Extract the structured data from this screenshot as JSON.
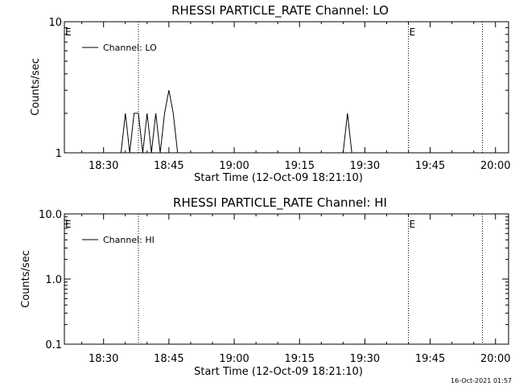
{
  "chart_data": [
    {
      "type": "line",
      "title": "RHESSI PARTICLE_RATE Channel: LO",
      "xlabel": "Start Time (12-Oct-09 18:21:10)",
      "ylabel": "Counts/sec",
      "y_scale": "log",
      "ylim": [
        1,
        10
      ],
      "y_ticks": [
        {
          "value": 1,
          "label": "1"
        },
        {
          "value": 10,
          "label": "10"
        }
      ],
      "xlim": [
        "18:21",
        "20:03"
      ],
      "x_ticks": [
        "18:30",
        "18:45",
        "19:00",
        "19:15",
        "19:30",
        "19:45",
        "20:00"
      ],
      "legend": {
        "position": "top-left",
        "entries": [
          "Channel: LO"
        ]
      },
      "markers": [
        {
          "x": "18:21",
          "label": "E",
          "line": false
        },
        {
          "x": "18:38",
          "label": "",
          "line": true
        },
        {
          "x": "19:40",
          "label": "E",
          "line": true
        },
        {
          "x": "19:57",
          "label": "",
          "line": true
        }
      ],
      "series": [
        {
          "name": "Channel: LO",
          "points": [
            [
              "18:34",
              1
            ],
            [
              "18:35",
              2
            ],
            [
              "18:36",
              1
            ],
            [
              "18:37",
              2
            ],
            [
              "18:38",
              2
            ],
            [
              "18:39",
              1
            ],
            [
              "18:40",
              2
            ],
            [
              "18:41",
              1
            ],
            [
              "18:42",
              2
            ],
            [
              "18:43",
              1
            ],
            [
              "18:44",
              2
            ],
            [
              "18:45",
              3
            ],
            [
              "18:46",
              2
            ],
            [
              "18:47",
              1
            ],
            [
              "19:25",
              1
            ],
            [
              "19:26",
              2
            ],
            [
              "19:27",
              1
            ]
          ]
        }
      ]
    },
    {
      "type": "line",
      "title": "RHESSI PARTICLE_RATE Channel: HI",
      "xlabel": "Start Time (12-Oct-09 18:21:10)",
      "ylabel": "Counts/sec",
      "y_scale": "log",
      "ylim": [
        0.1,
        10
      ],
      "y_ticks": [
        {
          "value": 0.1,
          "label": "0.1"
        },
        {
          "value": 1,
          "label": "1.0"
        },
        {
          "value": 10,
          "label": "10.0"
        }
      ],
      "xlim": [
        "18:21",
        "20:03"
      ],
      "x_ticks": [
        "18:30",
        "18:45",
        "19:00",
        "19:15",
        "19:30",
        "19:45",
        "20:00"
      ],
      "legend": {
        "position": "top-left",
        "entries": [
          "Channel: HI"
        ]
      },
      "markers": [
        {
          "x": "18:21",
          "label": "E",
          "line": false
        },
        {
          "x": "18:38",
          "label": "",
          "line": true
        },
        {
          "x": "19:40",
          "label": "E",
          "line": true
        },
        {
          "x": "19:57",
          "label": "",
          "line": true
        }
      ],
      "series": [
        {
          "name": "Channel: HI",
          "points": []
        }
      ]
    }
  ],
  "footer": {
    "timestamp": "16-Oct-2021 01:57"
  }
}
